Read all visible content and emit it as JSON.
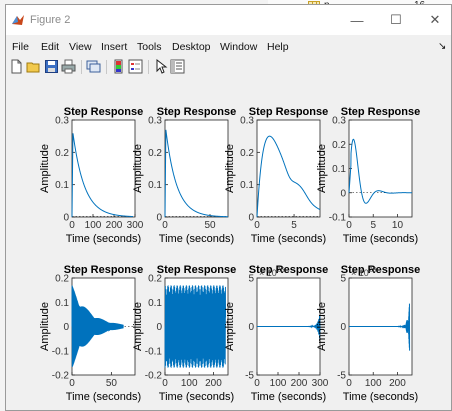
{
  "background_window": {
    "item_label": "p",
    "item_value": "16"
  },
  "window": {
    "title": "Figure 2"
  },
  "window_controls": {
    "minimize": "—",
    "maximize": "☐",
    "close": "✕"
  },
  "menu": [
    "File",
    "Edit",
    "View",
    "Insert",
    "Tools",
    "Desktop",
    "Window",
    "Help"
  ],
  "menu_arrow": "↘",
  "toolbar_icons": [
    "new-figure-icon",
    "open-file-icon",
    "save-icon",
    "print-icon",
    "link-icon",
    "colorbar-icon",
    "legend-icon",
    "pointer-icon",
    "property-inspector-icon"
  ],
  "colors": {
    "line": "#0072BD",
    "steady_state": "#000000",
    "axes_bg": "#ffffff"
  },
  "chart_data": [
    {
      "type": "line",
      "title": "Step Response",
      "xlabel": "Time (seconds)",
      "ylabel": "Amplitude",
      "xlim": [
        0,
        300
      ],
      "ylim": [
        0,
        0.3
      ],
      "xticks": [
        "0",
        "100",
        "200",
        "300"
      ],
      "yticks": [
        "0",
        "0.1",
        "0.2",
        "0.3"
      ],
      "series": [
        {
          "shape": "decay",
          "peak": 0.26,
          "decay_x": 55,
          "x_end": 290
        }
      ]
    },
    {
      "type": "line",
      "title": "Step Response",
      "xlabel": "Time (seconds)",
      "ylabel": "Amplitude",
      "xlim": [
        0,
        70
      ],
      "ylim": [
        0,
        0.3
      ],
      "xticks": [
        "0",
        "50"
      ],
      "yticks": [
        "0",
        "0.1",
        "0.2",
        "0.3"
      ],
      "series": [
        {
          "shape": "decay",
          "peak": 0.27,
          "decay_x": 12,
          "x_end": 70
        }
      ]
    },
    {
      "type": "line",
      "title": "Step Response",
      "xlabel": "Time (seconds)",
      "ylabel": "Amplitude",
      "xlim": [
        0,
        8.5
      ],
      "ylim": [
        0,
        0.3
      ],
      "xticks": [
        "0",
        "5"
      ],
      "yticks": [
        "0",
        "0.1",
        "0.2",
        "0.3"
      ],
      "series": [
        {
          "shape": "damped",
          "peak": 0.25,
          "peak_x": 1.7,
          "x_end": 8.5
        }
      ]
    },
    {
      "type": "line",
      "title": "Step Response",
      "xlabel": "Time (seconds)",
      "ylabel": "Amplitude",
      "xlim": [
        0,
        13
      ],
      "ylim": [
        -0.1,
        0.3
      ],
      "xticks": [
        "0",
        "5",
        "10"
      ],
      "yticks": [
        "-0.1",
        "0",
        "0.1",
        "0.2",
        "0.3"
      ],
      "series": [
        {
          "shape": "underdamped",
          "peak": 0.23,
          "x_end": 13
        }
      ]
    },
    {
      "type": "line",
      "title": "Step Response",
      "xlabel": "Time (seconds)",
      "ylabel": "Amplitude",
      "xlim": [
        0,
        80
      ],
      "ylim": [
        -0.2,
        0.2
      ],
      "xticks": [
        "0",
        "50"
      ],
      "yticks": [
        "-0.2",
        "-0.1",
        "0",
        "0.1",
        "0.2"
      ],
      "series": [
        {
          "shape": "oscillation_decay",
          "amplitude": 0.17,
          "x_end": 65
        }
      ]
    },
    {
      "type": "line",
      "title": "Step Response",
      "xlabel": "Time (seconds)",
      "ylabel": "Amplitude",
      "xlim": [
        0,
        260
      ],
      "ylim": [
        -0.2,
        0.2
      ],
      "xticks": [
        "0",
        "100",
        "200"
      ],
      "yticks": [
        "-0.2",
        "-0.1",
        "0",
        "0.1",
        "0.2"
      ],
      "series": [
        {
          "shape": "oscillation_sustained",
          "amplitude": 0.17,
          "x_end": 250
        }
      ]
    },
    {
      "type": "line",
      "title": "Step Response",
      "xlabel": "Time (seconds)",
      "ylabel": "Amplitude",
      "xlim": [
        0,
        300
      ],
      "ylim": [
        -5,
        5
      ],
      "exponent": "× 10",
      "exponent_power": "25",
      "xticks": [
        "0",
        "100",
        "200",
        "300"
      ],
      "yticks": [
        "-5",
        "0",
        "5"
      ],
      "series": [
        {
          "shape": "blowup",
          "amplitude": 1.5,
          "x_end": 300
        }
      ]
    },
    {
      "type": "line",
      "title": "Step Response",
      "xlabel": "Time (seconds)",
      "ylabel": "Amplitude",
      "xlim": [
        0,
        260
      ],
      "ylim": [
        -5,
        5
      ],
      "exponent": "× 10",
      "exponent_power": "29",
      "xticks": [
        "0",
        "100",
        "200"
      ],
      "yticks": [
        "-5",
        "0",
        "5"
      ],
      "series": [
        {
          "shape": "blowup",
          "amplitude": 2.5,
          "x_end": 250
        }
      ]
    }
  ]
}
